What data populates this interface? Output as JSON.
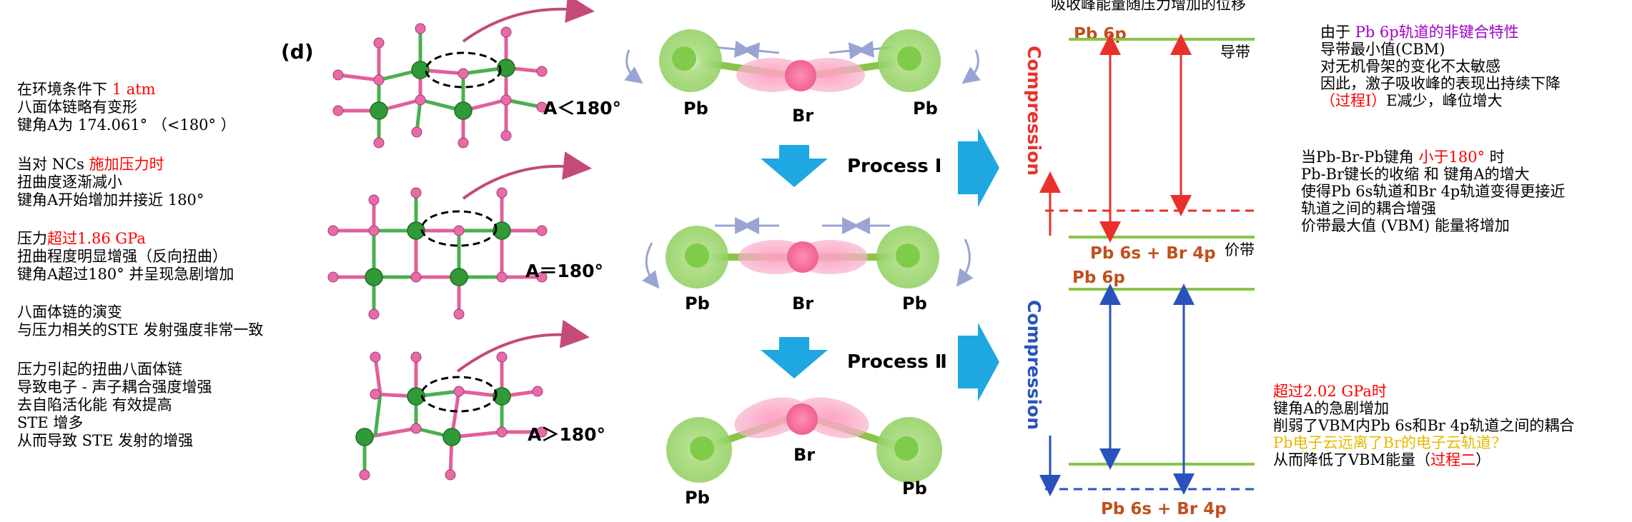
{
  "left_notes": {
    "b1": [
      "在环境条件下 ",
      "1 atm",
      "八面体链略有变形",
      "键角A为 174.061° （<180° ）"
    ],
    "b2": [
      "当对 NCs ",
      "施加压力时",
      "扭曲度逐渐减小",
      "键角A开始增加并接近 180°"
    ],
    "b3": [
      "压力",
      "超过1.86 GPa",
      "扭曲程度明显增强（反向扭曲）",
      "键角A超过180° 并呈现急剧增加"
    ],
    "b4": [
      "八面体链的演变",
      "与压力相关的STE 发射强度非常一致"
    ],
    "b5": [
      "压力引起的扭曲八面体链",
      "导致电子 - 声子耦合强度增强",
      "去自陷活化能 有效提高",
      "STE 增多",
      "从而导致 STE 发射的增强"
    ]
  },
  "panel_label": "(d)",
  "angles": [
    "A＜180°",
    "A＝180°",
    "A＞180°"
  ],
  "atoms": {
    "pb": "Pb",
    "br": "Br"
  },
  "processes": [
    "Process Ⅰ",
    "Process Ⅱ"
  ],
  "energy": {
    "top_caption": "吸收峰能量随压力增加的位移",
    "pb6p": "Pb 6p",
    "pb6s_br4p": "Pb 6s + Br 4p",
    "compression": "Compression",
    "cb": "导带",
    "vb": "价带"
  },
  "right_notes": {
    "r1": [
      "由于 ",
      "Pb 6p轨道的非键合特性",
      "导带最小值(CBM)",
      "对无机骨架的变化不太敏感",
      "因此，激子吸收峰的表现出持续下降",
      "（过程Ⅰ）",
      "E减少，峰位增大"
    ],
    "r2": [
      "当Pb-Br-Pb键角 ",
      "小于180° ",
      "时",
      "Pb-Br键长的收缩 和 键角A的增大",
      "使得Pb 6s轨道和Br 4p轨道变得更接近",
      "轨道之间的耦合增强",
      "价带最大值 (VBM) 能量将增加"
    ],
    "r3": [
      "超过2.02 GPa时",
      "键角A的急剧增加",
      "削弱了VBM内Pb 6s和Br 4p轨道之间的耦合",
      "Pb电子云远离了Br的电子云轨道?",
      "从而降低了VBM能量（",
      "过程二",
      "）"
    ]
  },
  "colors": {
    "pb_green": "#4caf50",
    "br_pink": "#e0609a",
    "process_blue": "#1ea7e1",
    "red": "#e8312a",
    "blue": "#2a52be",
    "level_green": "#8ac44a",
    "label_orange": "#c0501b"
  }
}
